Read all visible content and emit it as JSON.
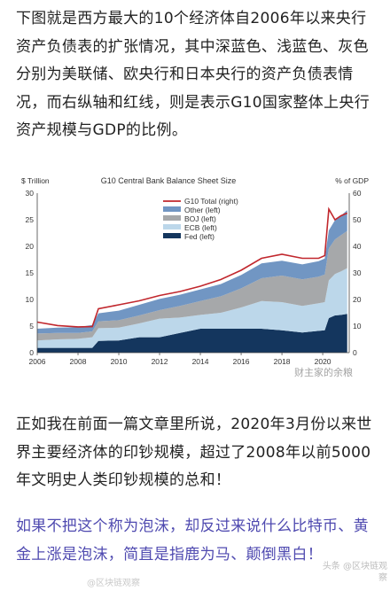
{
  "paragraphs": {
    "p1": "下图就是西方最大的10个经济体自2006年以来央行资产负债表的扩张情况，其中深蓝色、浅蓝色、灰色分别为美联储、欧央行和日本央行的资产负债表情况，而右纵轴和红线，则是表示G10国家整体上央行资产规模与GDP的比例。",
    "p2": "正如我在前面一篇文章里所说，2020年3月份以来世界主要经济体的印钞规模，超过了2008年以前5000年文明史人类印钞规模的总和！",
    "p3": "如果不把这个称为泡沫，却反过来说什么比特币、黄金上涨是泡沫，简直是指鹿为马、颠倒黑白！"
  },
  "watermarks": {
    "chart": "财主家的余粮",
    "bottom_left": "@区块链观察",
    "bottom_right": "头条 @区块链观察"
  },
  "chart_data": {
    "type": "area",
    "title": "G10 Central Bank Balance Sheet Size",
    "ylabel_left": "$ Trillion",
    "ylabel_right": "% of GDP",
    "ylim_left": [
      0,
      30
    ],
    "ylim_right": [
      0,
      60
    ],
    "yticks_left": [
      0,
      5,
      10,
      15,
      20,
      25,
      30
    ],
    "yticks_right": [
      0,
      10,
      20,
      30,
      40,
      50,
      60
    ],
    "xlim": [
      2006,
      2021.3
    ],
    "xticks": [
      "2006",
      "2008",
      "2010",
      "2012",
      "2014",
      "2016",
      "2018",
      "2020"
    ],
    "legend_position": "top-left",
    "x": [
      2006,
      2007,
      2008,
      2008.7,
      2009,
      2010,
      2011,
      2012,
      2013,
      2014,
      2015,
      2016,
      2017,
      2018,
      2019,
      2019.8,
      2020.1,
      2020.3,
      2020.6,
      2020.9,
      2021.2
    ],
    "stack_order": [
      "Fed (left)",
      "ECB (left)",
      "BOJ (left)",
      "Other (left)"
    ],
    "series": [
      {
        "name": "Fed (left)",
        "color": "#14365e",
        "axis": "left",
        "values": [
          0.9,
          0.9,
          0.9,
          0.9,
          2.2,
          2.3,
          2.9,
          2.9,
          3.7,
          4.5,
          4.5,
          4.5,
          4.5,
          4.2,
          3.8,
          4.1,
          4.2,
          6.5,
          7.0,
          7.1,
          7.3
        ]
      },
      {
        "name": "ECB (left)",
        "color": "#bcd7ea",
        "axis": "left",
        "values": [
          1.4,
          1.6,
          1.7,
          2.0,
          2.4,
          2.4,
          2.6,
          3.5,
          2.9,
          2.6,
          3.0,
          4.0,
          5.2,
          5.3,
          5.0,
          5.2,
          5.3,
          7.1,
          7.8,
          8.2,
          8.6
        ]
      },
      {
        "name": "BOJ (left)",
        "color": "#a6a8aa",
        "axis": "left",
        "values": [
          1.3,
          1.2,
          1.1,
          1.1,
          1.3,
          1.4,
          1.5,
          1.6,
          2.2,
          2.6,
          3.1,
          3.6,
          4.3,
          5.0,
          5.0,
          5.0,
          5.2,
          6.0,
          6.5,
          6.8,
          7.0
        ]
      },
      {
        "name": "Other (left)",
        "color": "#7196c3",
        "axis": "left",
        "values": [
          0.9,
          1.0,
          1.1,
          1.2,
          1.5,
          1.8,
          2.0,
          2.1,
          2.1,
          2.2,
          2.3,
          2.5,
          2.8,
          2.8,
          2.8,
          2.9,
          3.0,
          3.4,
          3.6,
          3.7,
          3.9
        ]
      },
      {
        "name": "G10 Total (right)",
        "color": "#c1272d",
        "axis": "right",
        "type": "line",
        "values": [
          11.5,
          10.2,
          9.7,
          9.8,
          16.5,
          18.0,
          19.5,
          21.5,
          23.0,
          25.0,
          27.5,
          31.0,
          35.5,
          37.0,
          35.5,
          35.5,
          36.5,
          54.0,
          50.0,
          51.5,
          52.5
        ]
      }
    ]
  }
}
